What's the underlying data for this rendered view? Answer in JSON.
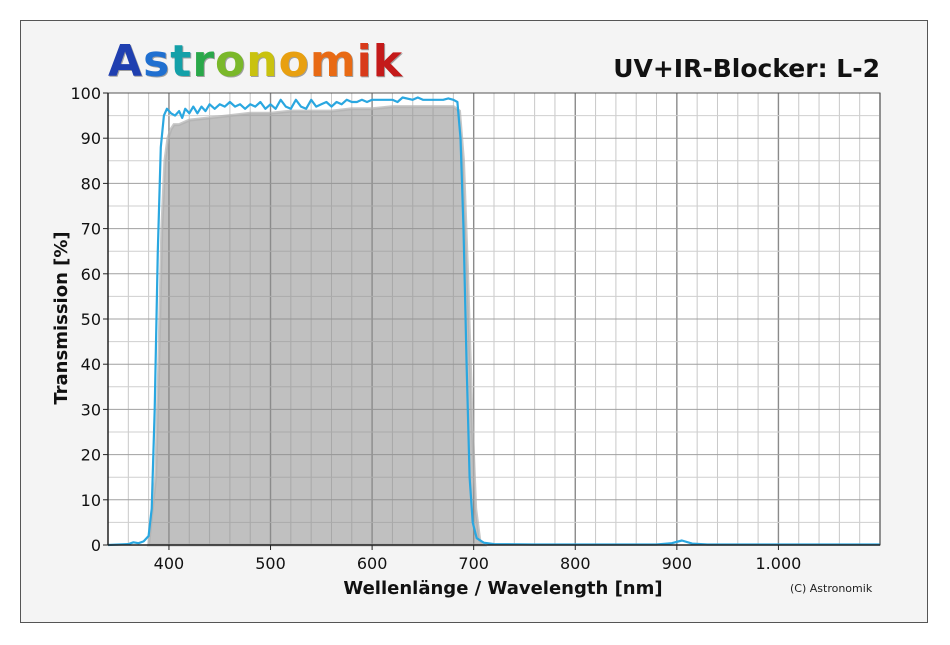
{
  "logo": {
    "text": "Astronomik",
    "colors": [
      "#1f3fb0",
      "#1f6fd0",
      "#13a0a8",
      "#2aa84a",
      "#7ab82a",
      "#c9c20f",
      "#e8a010",
      "#e86a14",
      "#d83a1a",
      "#c41a1a"
    ]
  },
  "chart_data": {
    "type": "line",
    "title": "UV+IR-Blocker: L-2",
    "xlabel": "Wellenlänge / Wavelength [nm]",
    "ylabel": "Transmission [%]",
    "copyright": "(C) Astronomik",
    "xlim": [
      340,
      1100
    ],
    "ylim": [
      0,
      100
    ],
    "x_ticks": [
      400,
      500,
      600,
      700,
      800,
      900,
      1000
    ],
    "x_tick_labels": [
      "400",
      "500",
      "600",
      "700",
      "800",
      "900",
      "1.000"
    ],
    "y_ticks": [
      0,
      10,
      20,
      30,
      40,
      50,
      60,
      70,
      80,
      90,
      100
    ],
    "grid": true,
    "line_color": "#2aa7e0",
    "fill_color": "#8c8c8c",
    "series": [
      {
        "points": [
          [
            340,
            0
          ],
          [
            360,
            0.2
          ],
          [
            365,
            0.6
          ],
          [
            370,
            0.4
          ],
          [
            375,
            0.8
          ],
          [
            380,
            2
          ],
          [
            383,
            8
          ],
          [
            386,
            30
          ],
          [
            389,
            65
          ],
          [
            392,
            88
          ],
          [
            395,
            95
          ],
          [
            398,
            96.5
          ],
          [
            402,
            95.5
          ],
          [
            406,
            95
          ],
          [
            410,
            96
          ],
          [
            413,
            94.5
          ],
          [
            416,
            96.5
          ],
          [
            420,
            95.5
          ],
          [
            424,
            97
          ],
          [
            428,
            95.5
          ],
          [
            432,
            97
          ],
          [
            436,
            96
          ],
          [
            440,
            97.5
          ],
          [
            445,
            96.5
          ],
          [
            450,
            97.5
          ],
          [
            455,
            97
          ],
          [
            460,
            98
          ],
          [
            465,
            97
          ],
          [
            470,
            97.5
          ],
          [
            475,
            96.5
          ],
          [
            480,
            97.5
          ],
          [
            485,
            97
          ],
          [
            490,
            98
          ],
          [
            495,
            96.5
          ],
          [
            500,
            97.5
          ],
          [
            505,
            96.5
          ],
          [
            510,
            98.5
          ],
          [
            515,
            97
          ],
          [
            520,
            96.5
          ],
          [
            525,
            98.5
          ],
          [
            530,
            97
          ],
          [
            535,
            96.5
          ],
          [
            540,
            98.5
          ],
          [
            545,
            97
          ],
          [
            550,
            97.5
          ],
          [
            555,
            98
          ],
          [
            560,
            97
          ],
          [
            565,
            98
          ],
          [
            570,
            97.5
          ],
          [
            575,
            98.5
          ],
          [
            580,
            98
          ],
          [
            585,
            98
          ],
          [
            590,
            98.5
          ],
          [
            595,
            98
          ],
          [
            600,
            98.5
          ],
          [
            610,
            98.5
          ],
          [
            620,
            98.5
          ],
          [
            625,
            98
          ],
          [
            630,
            99
          ],
          [
            640,
            98.5
          ],
          [
            645,
            99
          ],
          [
            650,
            98.5
          ],
          [
            660,
            98.5
          ],
          [
            670,
            98.5
          ],
          [
            675,
            98.8
          ],
          [
            680,
            98.5
          ],
          [
            684,
            98
          ],
          [
            687,
            90
          ],
          [
            690,
            70
          ],
          [
            693,
            40
          ],
          [
            696,
            15
          ],
          [
            699,
            5
          ],
          [
            703,
            1.5
          ],
          [
            710,
            0.5
          ],
          [
            720,
            0.2
          ],
          [
            760,
            0.1
          ],
          [
            880,
            0.1
          ],
          [
            895,
            0.4
          ],
          [
            905,
            1
          ],
          [
            915,
            0.3
          ],
          [
            930,
            0.1
          ],
          [
            1100,
            0.1
          ]
        ]
      }
    ],
    "fill_points": [
      [
        380,
        0
      ],
      [
        387,
        15
      ],
      [
        390,
        40
      ],
      [
        393,
        70
      ],
      [
        396,
        85
      ],
      [
        399,
        90
      ],
      [
        402,
        92
      ],
      [
        405,
        93
      ],
      [
        410,
        93
      ],
      [
        420,
        94
      ],
      [
        440,
        94.5
      ],
      [
        460,
        95
      ],
      [
        480,
        95.5
      ],
      [
        500,
        95.5
      ],
      [
        520,
        96
      ],
      [
        540,
        96
      ],
      [
        560,
        96
      ],
      [
        580,
        96.5
      ],
      [
        600,
        96.5
      ],
      [
        620,
        97
      ],
      [
        640,
        97
      ],
      [
        660,
        97
      ],
      [
        680,
        97
      ],
      [
        686,
        96
      ],
      [
        690,
        85
      ],
      [
        694,
        60
      ],
      [
        698,
        30
      ],
      [
        702,
        8
      ],
      [
        706,
        1
      ],
      [
        710,
        0
      ]
    ]
  }
}
